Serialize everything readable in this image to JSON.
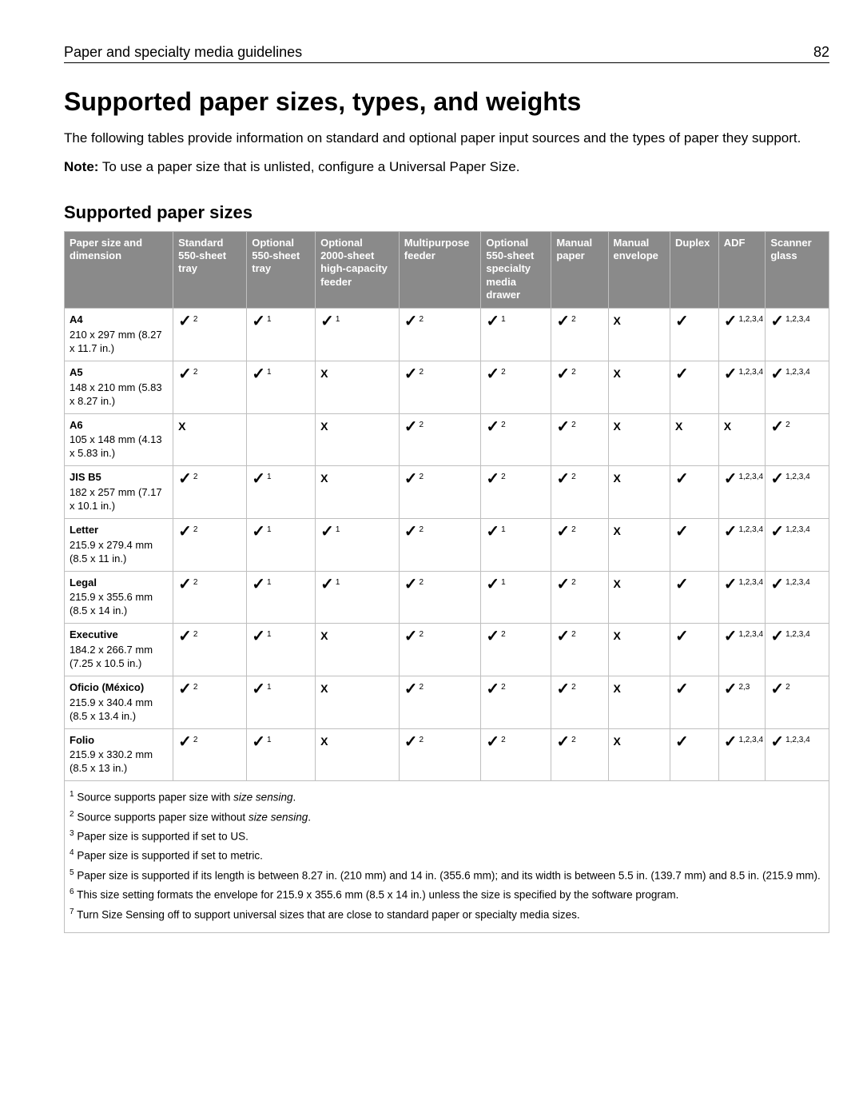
{
  "header": {
    "title": "Paper and specialty media guidelines",
    "pageNumber": "82"
  },
  "h1": "Supported paper sizes, types, and weights",
  "intro": "The following tables provide information on standard and optional paper input sources and the types of paper they support.",
  "note_label": "Note:",
  "note_text": " To use a paper size that is unlisted, configure a Universal Paper Size.",
  "h2": "Supported paper sizes",
  "columns": [
    "Paper size and dimension",
    "Standard 550‑sheet tray",
    "Optional 550‑sheet tray",
    "Optional 2000‑sheet high‑capacity feeder",
    "Multipurpose feeder",
    "Optional 550‑sheet specialty media drawer",
    "Manual paper",
    "Manual envelope",
    "Duplex",
    "ADF",
    "Scanner glass"
  ],
  "rows": [
    {
      "name": "A4",
      "dim": "210 x 297 mm (8.27 x 11.7 in.)",
      "cells": [
        {
          "mark": "check",
          "sup": "2"
        },
        {
          "mark": "check",
          "sup": "1"
        },
        {
          "mark": "check",
          "sup": "1"
        },
        {
          "mark": "check",
          "sup": "2"
        },
        {
          "mark": "check",
          "sup": "1"
        },
        {
          "mark": "check",
          "sup": "2"
        },
        {
          "mark": "x",
          "sup": ""
        },
        {
          "mark": "check",
          "sup": ""
        },
        {
          "mark": "check",
          "sup": "1,2,3,4"
        },
        {
          "mark": "check",
          "sup": "1,2,3,4"
        }
      ]
    },
    {
      "name": "A5",
      "dim": "148 x 210 mm (5.83 x 8.27 in.)",
      "cells": [
        {
          "mark": "check",
          "sup": "2"
        },
        {
          "mark": "check",
          "sup": "1"
        },
        {
          "mark": "x",
          "sup": ""
        },
        {
          "mark": "check",
          "sup": "2"
        },
        {
          "mark": "check",
          "sup": "2"
        },
        {
          "mark": "check",
          "sup": "2"
        },
        {
          "mark": "x",
          "sup": ""
        },
        {
          "mark": "check",
          "sup": ""
        },
        {
          "mark": "check",
          "sup": "1,2,3,4"
        },
        {
          "mark": "check",
          "sup": "1,2,3,4"
        }
      ]
    },
    {
      "name": "A6",
      "dim": "105 x 148 mm (4.13 x 5.83 in.)",
      "cells": [
        {
          "mark": "x",
          "sup": ""
        },
        {
          "mark": "",
          "sup": ""
        },
        {
          "mark": "x",
          "sup": ""
        },
        {
          "mark": "check",
          "sup": "2"
        },
        {
          "mark": "check",
          "sup": "2"
        },
        {
          "mark": "check",
          "sup": "2"
        },
        {
          "mark": "x",
          "sup": ""
        },
        {
          "mark": "x",
          "sup": ""
        },
        {
          "mark": "x",
          "sup": ""
        },
        {
          "mark": "check",
          "sup": "2"
        }
      ]
    },
    {
      "name": "JIS B5",
      "dim": "182 x 257 mm (7.17 x 10.1 in.)",
      "cells": [
        {
          "mark": "check",
          "sup": "2"
        },
        {
          "mark": "check",
          "sup": "1"
        },
        {
          "mark": "x",
          "sup": ""
        },
        {
          "mark": "check",
          "sup": "2"
        },
        {
          "mark": "check",
          "sup": "2"
        },
        {
          "mark": "check",
          "sup": "2"
        },
        {
          "mark": "x",
          "sup": ""
        },
        {
          "mark": "check",
          "sup": ""
        },
        {
          "mark": "check",
          "sup": "1,2,3,4"
        },
        {
          "mark": "check",
          "sup": "1,2,3,4"
        }
      ]
    },
    {
      "name": "Letter",
      "dim": "215.9 x 279.4 mm (8.5 x 11 in.)",
      "cells": [
        {
          "mark": "check",
          "sup": "2"
        },
        {
          "mark": "check",
          "sup": "1"
        },
        {
          "mark": "check",
          "sup": "1"
        },
        {
          "mark": "check",
          "sup": "2"
        },
        {
          "mark": "check",
          "sup": "1"
        },
        {
          "mark": "check",
          "sup": "2"
        },
        {
          "mark": "x",
          "sup": ""
        },
        {
          "mark": "check",
          "sup": ""
        },
        {
          "mark": "check",
          "sup": "1,2,3,4"
        },
        {
          "mark": "check",
          "sup": "1,2,3,4"
        }
      ]
    },
    {
      "name": "Legal",
      "dim": "215.9 x 355.6 mm (8.5 x 14 in.)",
      "cells": [
        {
          "mark": "check",
          "sup": "2"
        },
        {
          "mark": "check",
          "sup": "1"
        },
        {
          "mark": "check",
          "sup": "1"
        },
        {
          "mark": "check",
          "sup": "2"
        },
        {
          "mark": "check",
          "sup": "1"
        },
        {
          "mark": "check",
          "sup": "2"
        },
        {
          "mark": "x",
          "sup": ""
        },
        {
          "mark": "check",
          "sup": ""
        },
        {
          "mark": "check",
          "sup": "1,2,3,4"
        },
        {
          "mark": "check",
          "sup": "1,2,3,4"
        }
      ]
    },
    {
      "name": "Executive",
      "dim": "184.2 x 266.7 mm (7.25 x 10.5 in.)",
      "cells": [
        {
          "mark": "check",
          "sup": "2"
        },
        {
          "mark": "check",
          "sup": "1"
        },
        {
          "mark": "x",
          "sup": ""
        },
        {
          "mark": "check",
          "sup": "2"
        },
        {
          "mark": "check",
          "sup": "2"
        },
        {
          "mark": "check",
          "sup": "2"
        },
        {
          "mark": "x",
          "sup": ""
        },
        {
          "mark": "check",
          "sup": ""
        },
        {
          "mark": "check",
          "sup": "1,2,3,4"
        },
        {
          "mark": "check",
          "sup": "1,2,3,4"
        }
      ]
    },
    {
      "name": "Oficio (México)",
      "dim": "215.9 x 340.4 mm (8.5 x 13.4 in.)",
      "cells": [
        {
          "mark": "check",
          "sup": "2"
        },
        {
          "mark": "check",
          "sup": "1"
        },
        {
          "mark": "x",
          "sup": ""
        },
        {
          "mark": "check",
          "sup": "2"
        },
        {
          "mark": "check",
          "sup": "2"
        },
        {
          "mark": "check",
          "sup": "2"
        },
        {
          "mark": "x",
          "sup": ""
        },
        {
          "mark": "check",
          "sup": ""
        },
        {
          "mark": "check",
          "sup": "2,3"
        },
        {
          "mark": "check",
          "sup": "2"
        }
      ]
    },
    {
      "name": "Folio",
      "dim": "215.9 x 330.2 mm (8.5 x 13 in.)",
      "cells": [
        {
          "mark": "check",
          "sup": "2"
        },
        {
          "mark": "check",
          "sup": "1"
        },
        {
          "mark": "x",
          "sup": ""
        },
        {
          "mark": "check",
          "sup": "2"
        },
        {
          "mark": "check",
          "sup": "2"
        },
        {
          "mark": "check",
          "sup": "2"
        },
        {
          "mark": "x",
          "sup": ""
        },
        {
          "mark": "check",
          "sup": ""
        },
        {
          "mark": "check",
          "sup": "1,2,3,4"
        },
        {
          "mark": "check",
          "sup": "1,2,3,4"
        }
      ]
    }
  ],
  "footnotes": [
    {
      "num": "1",
      "text_a": " Source supports paper size with ",
      "em": "size sensing",
      "text_b": "."
    },
    {
      "num": "2",
      "text_a": " Source supports paper size without ",
      "em": "size sensing",
      "text_b": "."
    },
    {
      "num": "3",
      "text_a": " Paper size is supported if set to US.",
      "em": "",
      "text_b": ""
    },
    {
      "num": "4",
      "text_a": " Paper size is supported if set to metric.",
      "em": "",
      "text_b": ""
    },
    {
      "num": "5",
      "text_a": " Paper size is supported if its length is between 8.27 in. (210 mm) and 14 in. (355.6 mm); and its width is between 5.5 in. (139.7 mm) and 8.5 in. (215.9 mm).",
      "em": "",
      "text_b": ""
    },
    {
      "num": "6",
      "text_a": " This size setting formats the envelope for 215.9 x 355.6 mm (8.5 x 14 in.) unless the size is specified by the software program.",
      "em": "",
      "text_b": ""
    },
    {
      "num": "7",
      "text_a": " Turn Size Sensing off to support universal sizes that are close to standard paper or specialty media sizes.",
      "em": "",
      "text_b": ""
    }
  ],
  "glyphs": {
    "check": "✓",
    "x": "X"
  }
}
